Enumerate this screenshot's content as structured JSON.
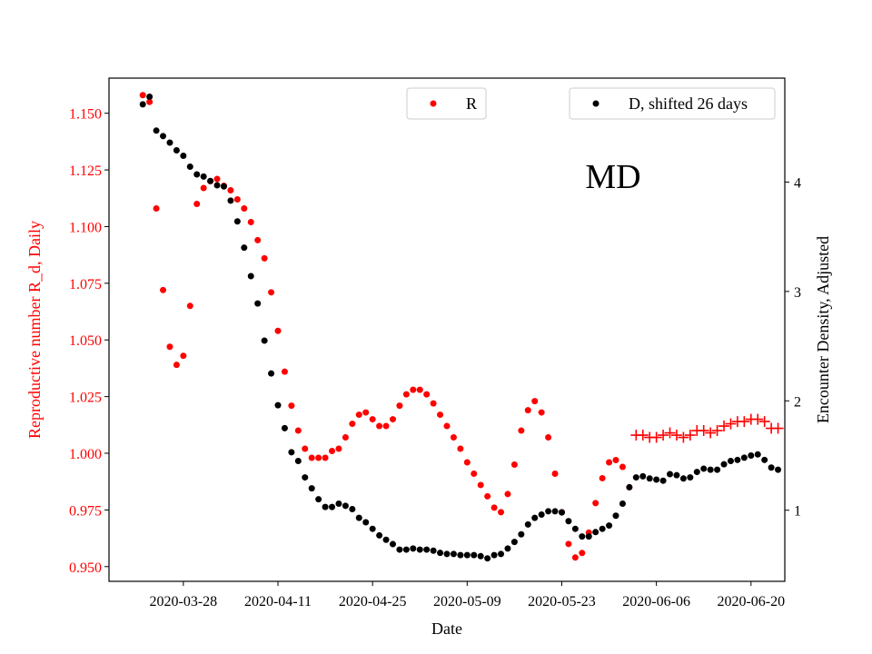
{
  "chart_data": {
    "type": "scatter",
    "annotation": "MD",
    "xlabel": "Date",
    "ylabel_left": "Reproductive number R_d, Daily",
    "ylabel_right": "Encounter Density, Adjusted",
    "x_ticks": [
      "2020-03-28",
      "2020-04-11",
      "2020-04-25",
      "2020-05-09",
      "2020-05-23",
      "2020-06-06",
      "2020-06-20"
    ],
    "x_range": [
      "2020-03-17",
      "2020-06-25"
    ],
    "y_left_ticks": [
      "0.950",
      "0.975",
      "1.000",
      "1.025",
      "1.050",
      "1.075",
      "1.100",
      "1.125",
      "1.150"
    ],
    "y_left_range": [
      0.9435,
      1.1655
    ],
    "y_right_ticks": [
      "1",
      "2",
      "3",
      "4"
    ],
    "y_right_range": [
      0.35,
      4.95
    ],
    "colors": {
      "R": "#ff0000",
      "D": "#000000",
      "axis": "#000000"
    },
    "legends": [
      {
        "label": "R",
        "color": "#ff0000"
      },
      {
        "label": "D, shifted 26 days",
        "color": "#000000"
      }
    ],
    "series": [
      {
        "name": "R",
        "axis": "left",
        "color": "#ff0000",
        "marker": "dot",
        "x_start": "2020-03-22",
        "values": [
          1.158,
          1.155,
          1.108,
          1.072,
          1.047,
          1.039,
          1.043,
          1.065,
          1.11,
          1.117,
          1.12,
          1.121,
          1.118,
          1.116,
          1.112,
          1.108,
          1.102,
          1.094,
          1.086,
          1.071,
          1.054,
          1.036,
          1.021,
          1.01,
          1.002,
          0.998,
          0.998,
          0.998,
          1.001,
          1.002,
          1.007,
          1.013,
          1.017,
          1.018,
          1.015,
          1.012,
          1.012,
          1.015,
          1.021,
          1.026,
          1.028,
          1.028,
          1.026,
          1.022,
          1.017,
          1.012,
          1.007,
          1.002,
          0.996,
          0.991,
          0.986,
          0.981,
          0.976,
          0.974,
          0.982,
          0.995,
          1.01,
          1.019,
          1.023,
          1.018,
          1.007,
          0.991,
          0.974,
          0.96,
          0.954,
          0.956,
          0.965,
          0.978,
          0.989,
          0.996,
          0.997,
          0.994,
          0.985
        ]
      },
      {
        "name": "R",
        "axis": "left",
        "color": "#ff0000",
        "marker": "plus",
        "x_start": "2020-06-03",
        "values": [
          1.008,
          1.008,
          1.007,
          1.007,
          1.008,
          1.009,
          1.008,
          1.007,
          1.008,
          1.01,
          1.01,
          1.009,
          1.01,
          1.012,
          1.013,
          1.014,
          1.014,
          1.015,
          1.015,
          1.014,
          1.011,
          1.011
        ]
      },
      {
        "name": "D, shifted 26 days",
        "axis": "right",
        "color": "#000000",
        "marker": "dot",
        "x_start": "2020-03-22",
        "values": [
          4.71,
          4.78,
          4.47,
          4.42,
          4.36,
          4.29,
          4.24,
          4.14,
          4.07,
          4.05,
          4.01,
          3.97,
          3.96,
          3.83,
          3.64,
          3.4,
          3.14,
          2.89,
          2.55,
          2.25,
          1.96,
          1.75,
          1.53,
          1.45,
          1.3,
          1.2,
          1.1,
          1.03,
          1.03,
          1.06,
          1.04,
          1.01,
          0.93,
          0.89,
          0.83,
          0.77,
          0.73,
          0.69,
          0.64,
          0.64,
          0.65,
          0.64,
          0.64,
          0.63,
          0.61,
          0.6,
          0.6,
          0.59,
          0.59,
          0.59,
          0.58,
          0.56,
          0.59,
          0.6,
          0.65,
          0.71,
          0.78,
          0.87,
          0.93,
          0.96,
          0.99,
          0.99,
          0.98,
          0.9,
          0.83,
          0.76,
          0.76,
          0.8,
          0.83,
          0.86,
          0.95,
          1.06,
          1.21,
          1.3,
          1.31,
          1.29,
          1.28,
          1.27,
          1.33,
          1.32,
          1.29,
          1.3,
          1.35,
          1.38,
          1.37,
          1.37,
          1.42,
          1.45,
          1.46,
          1.48,
          1.5,
          1.51,
          1.46,
          1.39,
          1.37
        ]
      }
    ]
  }
}
